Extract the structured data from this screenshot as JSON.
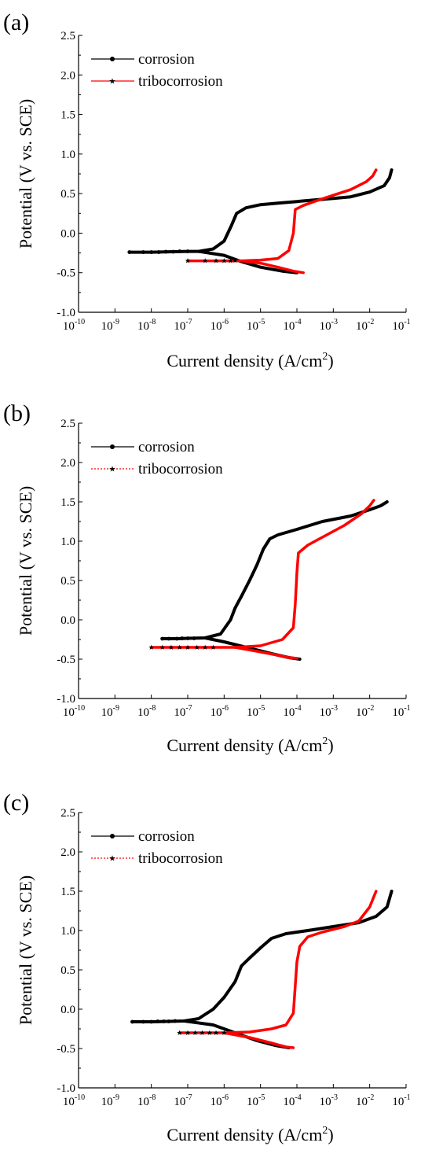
{
  "chart_data": [
    {
      "type": "line",
      "panel_label": "(a)",
      "xlabel": "Current density (A/cm",
      "xlabel_sup": "2",
      "xlabel_end": ")",
      "ylabel": "Potential (V vs. SCE)",
      "x_scale": "log",
      "xlim_exp": [
        -10,
        -1
      ],
      "ylim": [
        -1.0,
        2.5
      ],
      "y_ticks": [
        "-1.0",
        "-0.5",
        "0.0",
        "0.5",
        "1.0",
        "1.5",
        "2.0",
        "2.5"
      ],
      "x_tick_base": "10",
      "x_tick_exps": [
        "-10",
        "-9",
        "-8",
        "-7",
        "-6",
        "-5",
        "-4",
        "-3",
        "-2",
        "-1"
      ],
      "legend_position": "top-left",
      "series": [
        {
          "name": "corrosion",
          "color": "#000000",
          "line": "solid",
          "marker": "circle",
          "points": [
            [
              2.5e-09,
              -0.24
            ],
            [
              1e-08,
              -0.24
            ],
            [
              3e-08,
              -0.235
            ],
            [
              1e-07,
              -0.23
            ],
            [
              2e-07,
              -0.23
            ],
            [
              5e-07,
              -0.2
            ],
            [
              1e-06,
              -0.1
            ],
            [
              1.6e-06,
              0.1
            ],
            [
              2.2e-06,
              0.25
            ],
            [
              4e-06,
              0.32
            ],
            [
              1e-05,
              0.36
            ],
            [
              3e-05,
              0.38
            ],
            [
              0.0001,
              0.4
            ],
            [
              0.0003,
              0.42
            ],
            [
              0.001,
              0.44
            ],
            [
              0.003,
              0.46
            ],
            [
              0.01,
              0.52
            ],
            [
              0.025,
              0.6
            ],
            [
              0.035,
              0.7
            ],
            [
              0.04,
              0.8
            ]
          ],
          "cathodic": [
            [
              2e-07,
              -0.23
            ],
            [
              1e-06,
              -0.28
            ],
            [
              3e-06,
              -0.36
            ],
            [
              1e-05,
              -0.43
            ],
            [
              4e-05,
              -0.48
            ],
            [
              0.0001,
              -0.5
            ]
          ],
          "dot_points": [
            [
              2.5e-09,
              -0.24
            ],
            [
              6e-09,
              -0.24
            ],
            [
              1e-08,
              -0.24
            ],
            [
              1.6e-08,
              -0.24
            ],
            [
              2.5e-08,
              -0.235
            ],
            [
              4e-08,
              -0.235
            ],
            [
              6e-08,
              -0.23
            ],
            [
              1e-07,
              -0.23
            ]
          ]
        },
        {
          "name": "tribocorrosion",
          "color": "#ff0000",
          "line": "solid",
          "marker": "star",
          "points": [
            [
              1e-07,
              -0.35
            ],
            [
              1e-06,
              -0.35
            ],
            [
              3e-06,
              -0.35
            ],
            [
              1e-05,
              -0.34
            ],
            [
              3e-05,
              -0.32
            ],
            [
              6e-05,
              -0.22
            ],
            [
              8e-05,
              0.0
            ],
            [
              9e-05,
              0.3
            ],
            [
              0.00015,
              0.35
            ],
            [
              0.0003,
              0.4
            ],
            [
              0.001,
              0.48
            ],
            [
              0.003,
              0.55
            ],
            [
              0.008,
              0.65
            ],
            [
              0.012,
              0.72
            ],
            [
              0.015,
              0.8
            ]
          ],
          "cathodic": [
            [
              3e-06,
              -0.35
            ],
            [
              1e-05,
              -0.38
            ],
            [
              3e-05,
              -0.43
            ],
            [
              8e-05,
              -0.48
            ],
            [
              0.00015,
              -0.5
            ]
          ],
          "dot_points": [
            [
              1e-07,
              -0.35
            ],
            [
              3e-07,
              -0.35
            ],
            [
              6e-07,
              -0.35
            ],
            [
              1e-06,
              -0.35
            ],
            [
              1.5e-06,
              -0.35
            ],
            [
              2e-06,
              -0.345
            ]
          ]
        }
      ]
    },
    {
      "type": "line",
      "panel_label": "(b)",
      "xlabel": "Current density (A/cm",
      "xlabel_sup": "2",
      "xlabel_end": ")",
      "ylabel": "Potential (V vs. SCE)",
      "x_scale": "log",
      "xlim_exp": [
        -10,
        -1
      ],
      "ylim": [
        -1.0,
        2.5
      ],
      "y_ticks": [
        "-1.0",
        "-0.5",
        "0.0",
        "0.5",
        "1.0",
        "1.5",
        "2.0",
        "2.5"
      ],
      "x_tick_base": "10",
      "x_tick_exps": [
        "-10",
        "-9",
        "-8",
        "-7",
        "-6",
        "-5",
        "-4",
        "-3",
        "-2",
        "-1"
      ],
      "legend_position": "top-left",
      "series": [
        {
          "name": "corrosion",
          "color": "#000000",
          "line": "solid",
          "marker": "circle",
          "points": [
            [
              2e-08,
              -0.24
            ],
            [
              5e-08,
              -0.24
            ],
            [
              1e-07,
              -0.235
            ],
            [
              3e-07,
              -0.23
            ],
            [
              8e-07,
              -0.18
            ],
            [
              1.5e-06,
              0.0
            ],
            [
              2e-06,
              0.15
            ],
            [
              3e-06,
              0.3
            ],
            [
              5e-06,
              0.5
            ],
            [
              8e-06,
              0.7
            ],
            [
              1.2e-05,
              0.9
            ],
            [
              1.8e-05,
              1.03
            ],
            [
              3e-05,
              1.08
            ],
            [
              0.0001,
              1.15
            ],
            [
              0.0005,
              1.25
            ],
            [
              0.003,
              1.32
            ],
            [
              0.01,
              1.4
            ],
            [
              0.02,
              1.45
            ],
            [
              0.03,
              1.5
            ]
          ],
          "cathodic": [
            [
              3e-07,
              -0.23
            ],
            [
              1e-06,
              -0.28
            ],
            [
              5e-06,
              -0.36
            ],
            [
              2e-05,
              -0.43
            ],
            [
              6e-05,
              -0.48
            ],
            [
              0.00012,
              -0.5
            ]
          ],
          "dot_points": [
            [
              2e-08,
              -0.24
            ],
            [
              3e-08,
              -0.24
            ],
            [
              5e-08,
              -0.24
            ],
            [
              7e-08,
              -0.235
            ],
            [
              1e-07,
              -0.235
            ],
            [
              1.5e-07,
              -0.235
            ]
          ]
        },
        {
          "name": "tribocorrosion",
          "color": "#ff0000",
          "line": "dotted",
          "marker": "star",
          "points": [
            [
              1e-08,
              -0.35
            ],
            [
              1e-07,
              -0.35
            ],
            [
              5e-07,
              -0.35
            ],
            [
              2e-06,
              -0.35
            ],
            [
              1e-05,
              -0.33
            ],
            [
              4e-05,
              -0.25
            ],
            [
              8e-05,
              -0.1
            ],
            [
              9e-05,
              0.2
            ],
            [
              0.0001,
              0.6
            ],
            [
              0.00011,
              0.85
            ],
            [
              0.0002,
              0.95
            ],
            [
              0.0005,
              1.05
            ],
            [
              0.002,
              1.2
            ],
            [
              0.006,
              1.35
            ],
            [
              0.01,
              1.45
            ],
            [
              0.013,
              1.52
            ]
          ],
          "cathodic": [
            [
              2e-06,
              -0.35
            ],
            [
              8e-06,
              -0.4
            ],
            [
              3e-05,
              -0.45
            ],
            [
              6e-05,
              -0.48
            ],
            [
              0.0001,
              -0.49
            ]
          ],
          "dot_points": [
            [
              1e-08,
              -0.35
            ],
            [
              2e-08,
              -0.35
            ],
            [
              3.5e-08,
              -0.35
            ],
            [
              6e-08,
              -0.35
            ],
            [
              1e-07,
              -0.35
            ],
            [
              1.8e-07,
              -0.35
            ],
            [
              3e-07,
              -0.35
            ],
            [
              5e-07,
              -0.35
            ]
          ]
        }
      ]
    },
    {
      "type": "line",
      "panel_label": "(c)",
      "xlabel": "Current density (A/cm",
      "xlabel_sup": "2",
      "xlabel_end": ")",
      "ylabel": "Potential (V vs. SCE)",
      "x_scale": "log",
      "xlim_exp": [
        -10,
        -1
      ],
      "ylim": [
        -1.0,
        2.5
      ],
      "y_ticks": [
        "-1.0",
        "-0.5",
        "0.0",
        "0.5",
        "1.0",
        "1.5",
        "2.0",
        "2.5"
      ],
      "x_tick_base": "10",
      "x_tick_exps": [
        "-10",
        "-9",
        "-8",
        "-7",
        "-6",
        "-5",
        "-4",
        "-3",
        "-2",
        "-1"
      ],
      "legend_position": "top-left",
      "series": [
        {
          "name": "corrosion",
          "color": "#000000",
          "line": "solid",
          "marker": "circle",
          "points": [
            [
              3e-09,
              -0.16
            ],
            [
              1e-08,
              -0.16
            ],
            [
              3e-08,
              -0.155
            ],
            [
              8e-08,
              -0.15
            ],
            [
              2e-07,
              -0.12
            ],
            [
              5e-07,
              0.0
            ],
            [
              1e-06,
              0.15
            ],
            [
              2e-06,
              0.35
            ],
            [
              3e-06,
              0.55
            ],
            [
              5e-06,
              0.65
            ],
            [
              1e-05,
              0.78
            ],
            [
              2e-05,
              0.9
            ],
            [
              5e-05,
              0.96
            ],
            [
              0.0002,
              1.0
            ],
            [
              0.001,
              1.05
            ],
            [
              0.005,
              1.1
            ],
            [
              0.015,
              1.18
            ],
            [
              0.03,
              1.3
            ],
            [
              0.04,
              1.5
            ]
          ],
          "cathodic": [
            [
              8e-08,
              -0.15
            ],
            [
              5e-07,
              -0.2
            ],
            [
              2e-06,
              -0.3
            ],
            [
              8e-06,
              -0.4
            ],
            [
              2.5e-05,
              -0.46
            ],
            [
              6e-05,
              -0.49
            ]
          ],
          "dot_points": [
            [
              3e-09,
              -0.16
            ],
            [
              6e-09,
              -0.16
            ],
            [
              1e-08,
              -0.16
            ],
            [
              1.5e-08,
              -0.155
            ],
            [
              2.2e-08,
              -0.155
            ],
            [
              3e-08,
              -0.155
            ],
            [
              4.5e-08,
              -0.15
            ]
          ]
        },
        {
          "name": "tribocorrosion",
          "color": "#ff0000",
          "line": "dotted",
          "marker": "star",
          "points": [
            [
              6e-08,
              -0.3
            ],
            [
              3e-07,
              -0.3
            ],
            [
              1e-06,
              -0.3
            ],
            [
              5e-06,
              -0.29
            ],
            [
              2e-05,
              -0.25
            ],
            [
              5e-05,
              -0.2
            ],
            [
              8e-05,
              -0.05
            ],
            [
              9e-05,
              0.3
            ],
            [
              0.0001,
              0.6
            ],
            [
              0.00012,
              0.8
            ],
            [
              0.0002,
              0.92
            ],
            [
              0.0005,
              0.98
            ],
            [
              0.002,
              1.05
            ],
            [
              0.005,
              1.12
            ],
            [
              0.01,
              1.3
            ],
            [
              0.015,
              1.5
            ]
          ],
          "cathodic": [
            [
              1e-06,
              -0.3
            ],
            [
              5e-06,
              -0.36
            ],
            [
              2e-05,
              -0.43
            ],
            [
              5e-05,
              -0.48
            ],
            [
              8e-05,
              -0.49
            ]
          ],
          "dot_points": [
            [
              6e-08,
              -0.3
            ],
            [
              1e-07,
              -0.3
            ],
            [
              1.6e-07,
              -0.3
            ],
            [
              2.5e-07,
              -0.3
            ],
            [
              4e-07,
              -0.3
            ],
            [
              6e-07,
              -0.3
            ],
            [
              1e-06,
              -0.3
            ]
          ]
        }
      ]
    }
  ]
}
